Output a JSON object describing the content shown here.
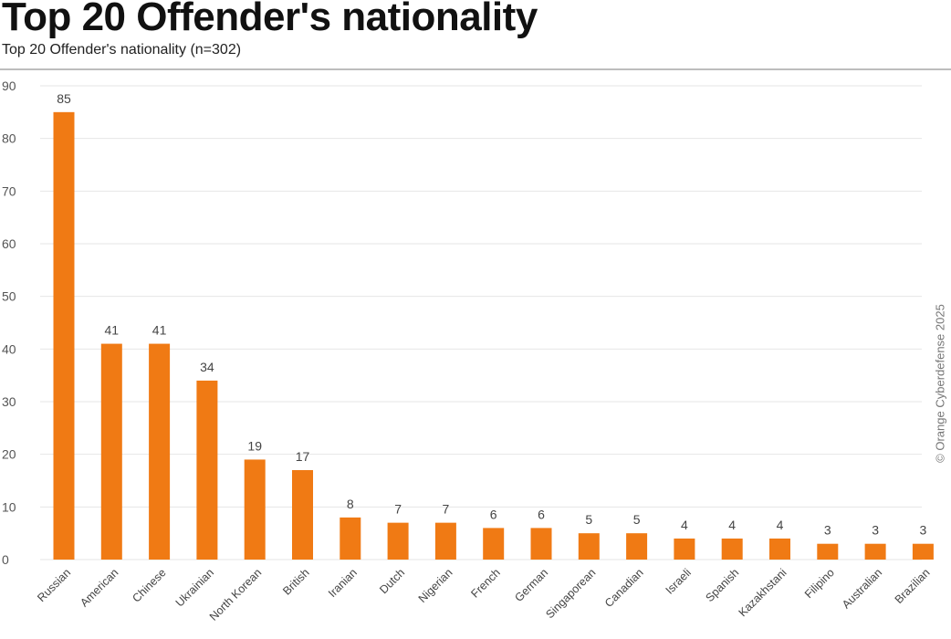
{
  "header": {
    "title": "Top 20 Offender's nationality",
    "subtitle": "Top 20 Offender's nationality (n=302)"
  },
  "credit": "© Orange Cyberdefense 2025",
  "colors": {
    "bar": "#F07A14",
    "grid": "#e6e6e6",
    "tick_text": "#555555",
    "label_text": "#444444"
  },
  "chart_data": {
    "type": "bar",
    "title": "Top 20 Offender's nationality",
    "subtitle": "Top 20 Offender's nationality (n=302)",
    "xlabel": "",
    "ylabel": "",
    "ylim": [
      0,
      90
    ],
    "yticks": [
      0,
      10,
      20,
      30,
      40,
      50,
      60,
      70,
      80,
      90
    ],
    "grid": true,
    "legend": "none",
    "categories": [
      "Russian",
      "American",
      "Chinese",
      "Ukrainian",
      "North Korean",
      "British",
      "Iranian",
      "Dutch",
      "Nigerian",
      "French",
      "German",
      "Singaporean",
      "Canadian",
      "Israeli",
      "Spanish",
      "Kazakhstani",
      "Filipino",
      "Australian",
      "Brazilian"
    ],
    "values": [
      85,
      41,
      41,
      34,
      19,
      17,
      8,
      7,
      7,
      6,
      6,
      5,
      5,
      4,
      4,
      4,
      3,
      3,
      3
    ]
  }
}
